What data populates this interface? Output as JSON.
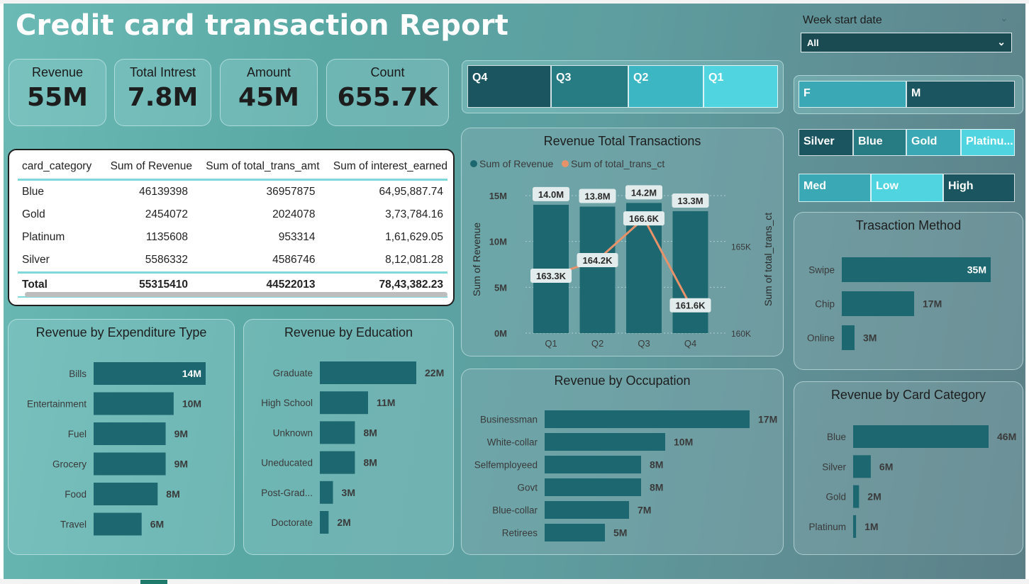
{
  "title": "Credit card transaction Report",
  "kpis": [
    {
      "label": "Revenue",
      "value": "55M"
    },
    {
      "label": "Total Intrest",
      "value": "7.8M"
    },
    {
      "label": "Amount",
      "value": "45M"
    },
    {
      "label": "Count",
      "value": "655.7K"
    }
  ],
  "quarter_slicer": [
    "Q4",
    "Q3",
    "Q2",
    "Q1"
  ],
  "gender_slicer": [
    "F",
    "M"
  ],
  "card_slicer": [
    "Silver",
    "Blue",
    "Gold",
    "Platinu..."
  ],
  "income_slicer": [
    "Med",
    "Low",
    "High"
  ],
  "week_filter": {
    "label": "Week start date",
    "value": "All"
  },
  "table": {
    "headers": [
      "card_category",
      "Sum of Revenue",
      "Sum of total_trans_amt",
      "Sum of interest_earned"
    ],
    "rows": [
      [
        "Blue",
        "46139398",
        "36957875",
        "64,95,887.74"
      ],
      [
        "Gold",
        "2454072",
        "2024078",
        "3,73,784.16"
      ],
      [
        "Platinum",
        "1135608",
        "953314",
        "1,61,629.05"
      ],
      [
        "Silver",
        "5586332",
        "4586746",
        "8,12,081.28"
      ]
    ],
    "total": [
      "Total",
      "55315410",
      "44522013",
      "78,43,382.23"
    ]
  },
  "colors": {
    "bar": "#1d6870",
    "line": "#e8926a",
    "slicer_dark": "#1b5660",
    "slicer_mid": "#277b82",
    "slicer_light": "#3db6c4",
    "slicer_lighter": "#4fd4e0"
  },
  "chart_data": [
    {
      "type": "bar",
      "title": "Revenue Total Transactions",
      "legend": [
        "Sum of Revenue",
        "Sum of total_trans_ct"
      ],
      "ylabel": "Sum of Revenue",
      "y2label": "Sum of total_trans_ct",
      "categories": [
        "Q1",
        "Q2",
        "Q3",
        "Q4"
      ],
      "yticks": [
        "0M",
        "5M",
        "10M",
        "15M"
      ],
      "y2ticks": [
        "160K",
        "165K"
      ],
      "ylim": [
        0,
        15
      ],
      "y2lim": [
        160,
        167.5
      ],
      "series": [
        {
          "name": "Sum of Revenue",
          "values": [
            14.0,
            13.8,
            14.2,
            13.3
          ],
          "labels": [
            "14.0M",
            "13.8M",
            "14.2M",
            "13.3M"
          ]
        },
        {
          "name": "Sum of total_trans_ct",
          "values": [
            163.3,
            164.2,
            166.6,
            161.6
          ],
          "labels": [
            "163.3K",
            "164.2K",
            "166.6K",
            "161.6K"
          ]
        }
      ]
    },
    {
      "type": "bar",
      "title": "Revenue by Expenditure Type",
      "categories": [
        "Bills",
        "Entertainment",
        "Fuel",
        "Grocery",
        "Food",
        "Travel"
      ],
      "values": [
        14,
        10,
        9,
        9,
        8,
        6
      ],
      "labels": [
        "14M",
        "10M",
        "9M",
        "9M",
        "8M",
        "6M"
      ]
    },
    {
      "type": "bar",
      "title": "Revenue by Education",
      "categories": [
        "Graduate",
        "High School",
        "Unknown",
        "Uneducated",
        "Post-Grad...",
        "Doctorate"
      ],
      "values": [
        22,
        11,
        8,
        8,
        3,
        2
      ],
      "labels": [
        "22M",
        "11M",
        "8M",
        "8M",
        "3M",
        "2M"
      ]
    },
    {
      "type": "bar",
      "title": "Revenue by Occupation",
      "categories": [
        "Businessman",
        "White-collar",
        "Selfemployeed",
        "Govt",
        "Blue-collar",
        "Retirees"
      ],
      "values": [
        17,
        10,
        8,
        8,
        7,
        5
      ],
      "labels": [
        "17M",
        "10M",
        "8M",
        "8M",
        "7M",
        "5M"
      ]
    },
    {
      "type": "bar",
      "title": "Trasaction Method",
      "categories": [
        "Swipe",
        "Chip",
        "Online"
      ],
      "values": [
        35,
        17,
        3
      ],
      "labels": [
        "35M",
        "17M",
        "3M"
      ]
    },
    {
      "type": "bar",
      "title": "Revenue by Card Category",
      "categories": [
        "Blue",
        "Silver",
        "Gold",
        "Platinum"
      ],
      "values": [
        46,
        6,
        2,
        1
      ],
      "labels": [
        "46M",
        "6M",
        "2M",
        "1M"
      ]
    }
  ]
}
